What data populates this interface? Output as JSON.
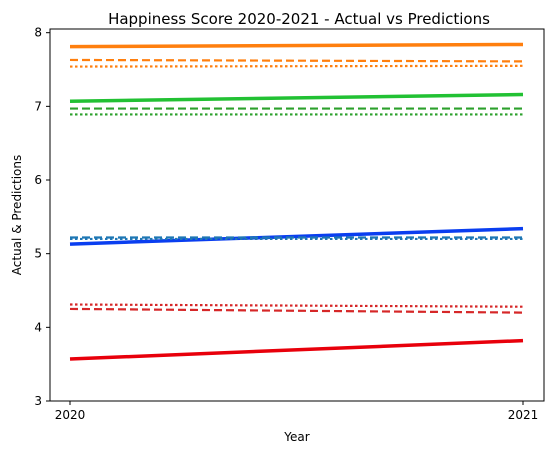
{
  "chart_data": {
    "type": "line",
    "title": "Happiness Score 2020-2021 - Actual vs Predictions",
    "xlabel": "Year",
    "ylabel": "Actual & Predictions",
    "x": [
      "2020",
      "2021"
    ],
    "ylim": [
      3,
      8.05
    ],
    "yticks": [
      "3",
      "4",
      "5",
      "6",
      "7",
      "8"
    ],
    "grid": false,
    "series": [
      {
        "style": "solid",
        "color": "#ff7f0e",
        "values": [
          7.81,
          7.84
        ]
      },
      {
        "style": "dashed",
        "color": "#ff7f0e",
        "values": [
          7.63,
          7.61
        ]
      },
      {
        "style": "dotted",
        "color": "#ff7f0e",
        "values": [
          7.54,
          7.55
        ]
      },
      {
        "style": "solid",
        "color": "#22c133",
        "values": [
          7.07,
          7.16
        ]
      },
      {
        "style": "dashed",
        "color": "#2ca02c",
        "values": [
          6.97,
          6.97
        ]
      },
      {
        "style": "dotted",
        "color": "#2ca02c",
        "values": [
          6.89,
          6.89
        ]
      },
      {
        "style": "solid",
        "color": "#0a3ef0",
        "values": [
          5.13,
          5.34
        ]
      },
      {
        "style": "dashed",
        "color": "#1f77b4",
        "values": [
          5.22,
          5.22
        ]
      },
      {
        "style": "dotted",
        "color": "#1f77b4",
        "values": [
          5.2,
          5.2
        ]
      },
      {
        "style": "dotted",
        "color": "#d62728",
        "values": [
          4.31,
          4.28
        ]
      },
      {
        "style": "dashed",
        "color": "#d62728",
        "values": [
          4.25,
          4.2
        ]
      },
      {
        "style": "solid",
        "color": "#e8000b",
        "values": [
          3.57,
          3.82
        ]
      }
    ]
  }
}
